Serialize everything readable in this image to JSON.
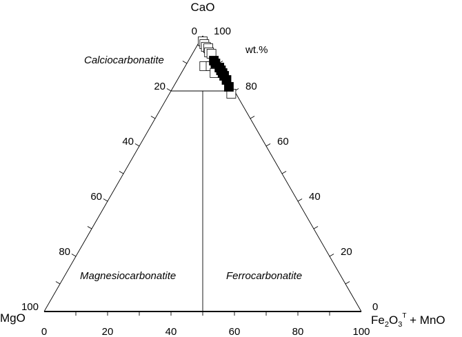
{
  "chart_data": {
    "type": "scatter",
    "subtype": "ternary",
    "title": "",
    "unit": "wt.%",
    "apices": {
      "top": "CaO",
      "left": "MgO",
      "right_main": "Fe2O3",
      "right_sup": "T",
      "right_suffix": " + MnO"
    },
    "apex_labels": {
      "top": "CaO",
      "left": "MgO",
      "right_base": "Fe",
      "right_sub1": "2",
      "right_o": "O",
      "right_sub2": "3",
      "right_sup": "T",
      "right_tail": " + MnO"
    },
    "axis_ticks": {
      "bottom": [
        "0",
        "20",
        "40",
        "60",
        "80",
        "100"
      ],
      "left_edge": [
        "100",
        "80",
        "60",
        "40",
        "20",
        "0"
      ],
      "right_edge": [
        "100",
        "80",
        "60",
        "40",
        "20",
        "0"
      ]
    },
    "fields": [
      {
        "name": "Calciocarbonatite"
      },
      {
        "name": "Magnesiocarbonatite"
      },
      {
        "name": "Ferrocarbonatite"
      }
    ],
    "field_boundaries": {
      "calcio_min_cao": 80,
      "mg_fe_divider": "MgO = Fe2O3T + MnO"
    },
    "series": [
      {
        "marker": "open-square",
        "color": "#ffffff",
        "points": [
          {
            "CaO": 98.0,
            "MgO": 1.0,
            "FeMn": 1.0
          },
          {
            "CaO": 97.0,
            "MgO": 1.0,
            "FeMn": 2.0
          },
          {
            "CaO": 96.0,
            "MgO": 1.0,
            "FeMn": 3.0
          },
          {
            "CaO": 95.5,
            "MgO": 0.5,
            "FeMn": 4.0
          },
          {
            "CaO": 94.0,
            "MgO": 1.0,
            "FeMn": 5.0
          },
          {
            "CaO": 93.5,
            "MgO": 0.5,
            "FeMn": 6.0
          },
          {
            "CaO": 89.0,
            "MgO": 5.0,
            "FeMn": 6.0
          },
          {
            "CaO": 89.0,
            "MgO": 3.0,
            "FeMn": 8.0
          },
          {
            "CaO": 86.5,
            "MgO": 3.0,
            "FeMn": 10.5
          },
          {
            "CaO": 79.0,
            "MgO": 1.5,
            "FeMn": 19.5
          }
        ]
      },
      {
        "marker": "filled-square",
        "color": "#000000",
        "points": [
          {
            "CaO": 91.0,
            "MgO": 1.0,
            "FeMn": 8.0
          },
          {
            "CaO": 90.0,
            "MgO": 1.0,
            "FeMn": 9.0
          },
          {
            "CaO": 88.5,
            "MgO": 0.5,
            "FeMn": 11.0
          },
          {
            "CaO": 87.5,
            "MgO": 0.5,
            "FeMn": 12.0
          },
          {
            "CaO": 86.5,
            "MgO": 0.5,
            "FeMn": 13.0
          },
          {
            "CaO": 85.5,
            "MgO": 0.5,
            "FeMn": 14.0
          },
          {
            "CaO": 84.0,
            "MgO": 0.5,
            "FeMn": 15.5
          },
          {
            "CaO": 81.5,
            "MgO": 1.0,
            "FeMn": 17.5
          }
        ]
      }
    ],
    "grid": false,
    "legend": "none"
  }
}
